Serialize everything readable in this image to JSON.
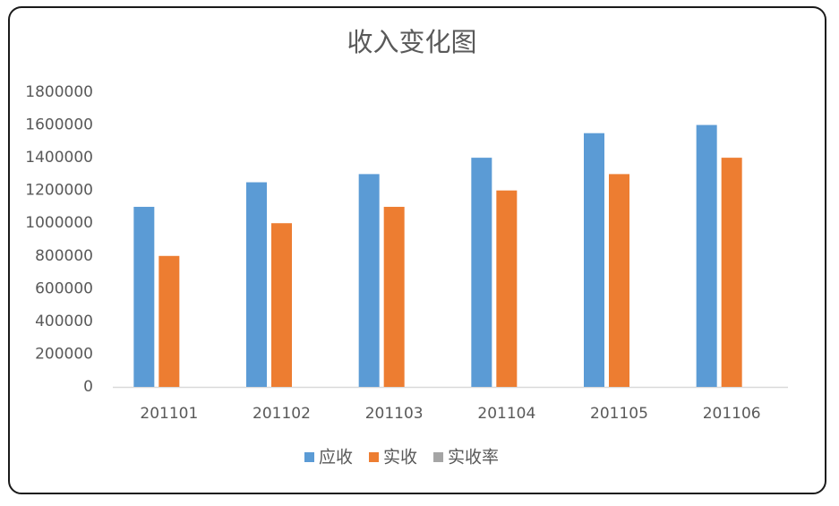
{
  "chart_data": {
    "type": "bar",
    "title": "收入变化图",
    "categories": [
      "201101",
      "201102",
      "201103",
      "201104",
      "201105",
      "201106"
    ],
    "series": [
      {
        "name": "应收",
        "color": "#5b9bd5",
        "values": [
          1100000,
          1250000,
          1300000,
          1400000,
          1550000,
          1600000
        ]
      },
      {
        "name": "实收",
        "color": "#ed7d31",
        "values": [
          800000,
          1000000,
          1100000,
          1200000,
          1300000,
          1400000
        ]
      },
      {
        "name": "实收率",
        "color": "#a5a5a5",
        "values": [
          0,
          0,
          0,
          0,
          0,
          0
        ]
      }
    ],
    "ylim": [
      0,
      1800000
    ],
    "yticks": [
      0,
      200000,
      400000,
      600000,
      800000,
      1000000,
      1200000,
      1400000,
      1600000,
      1800000
    ],
    "grid": false,
    "legend": "bottom"
  }
}
